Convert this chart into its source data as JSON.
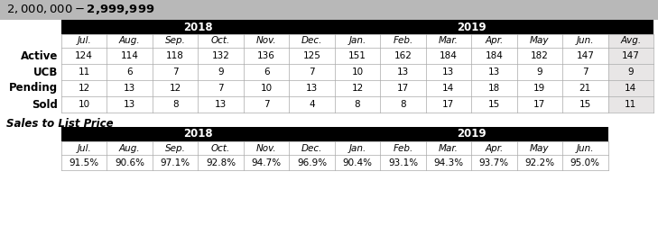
{
  "title": "$2,000,000 - $2,999,999",
  "title_bg": "#b8b8b8",
  "header_bg": "#000000",
  "header_text_color": "#ffffff",
  "avg_col_bg": "#e8e6e6",
  "row_labels": [
    "Active",
    "UCB",
    "Pending",
    "Sold"
  ],
  "col_headers": [
    "Jul.",
    "Aug.",
    "Sep.",
    "Oct.",
    "Nov.",
    "Dec.",
    "Jan.",
    "Feb.",
    "Mar.",
    "Apr.",
    "May",
    "Jun.",
    "Avg."
  ],
  "table_data": [
    [
      124,
      114,
      118,
      132,
      136,
      125,
      151,
      162,
      184,
      184,
      182,
      147,
      147
    ],
    [
      11,
      6,
      7,
      9,
      6,
      7,
      10,
      13,
      13,
      13,
      9,
      7,
      9
    ],
    [
      12,
      13,
      12,
      7,
      10,
      13,
      12,
      17,
      14,
      18,
      19,
      21,
      14
    ],
    [
      10,
      13,
      8,
      13,
      7,
      4,
      8,
      8,
      17,
      15,
      17,
      15,
      11
    ]
  ],
  "sales_title": "Sales to List Price",
  "sales_col_headers": [
    "Jul.",
    "Aug.",
    "Sep.",
    "Oct.",
    "Nov.",
    "Dec.",
    "Jan.",
    "Feb.",
    "Mar.",
    "Apr.",
    "May",
    "Jun."
  ],
  "sales_data": [
    "91.5%",
    "90.6%",
    "97.1%",
    "92.8%",
    "94.7%",
    "96.9%",
    "90.4%",
    "93.1%",
    "94.3%",
    "93.7%",
    "92.2%",
    "95.0%"
  ],
  "grid_color": "#aaaaaa",
  "font_size": 7.5,
  "row_label_fs": 8.5,
  "title_fs": 9.5,
  "header_fs": 8.5,
  "col_header_fs": 7.5
}
